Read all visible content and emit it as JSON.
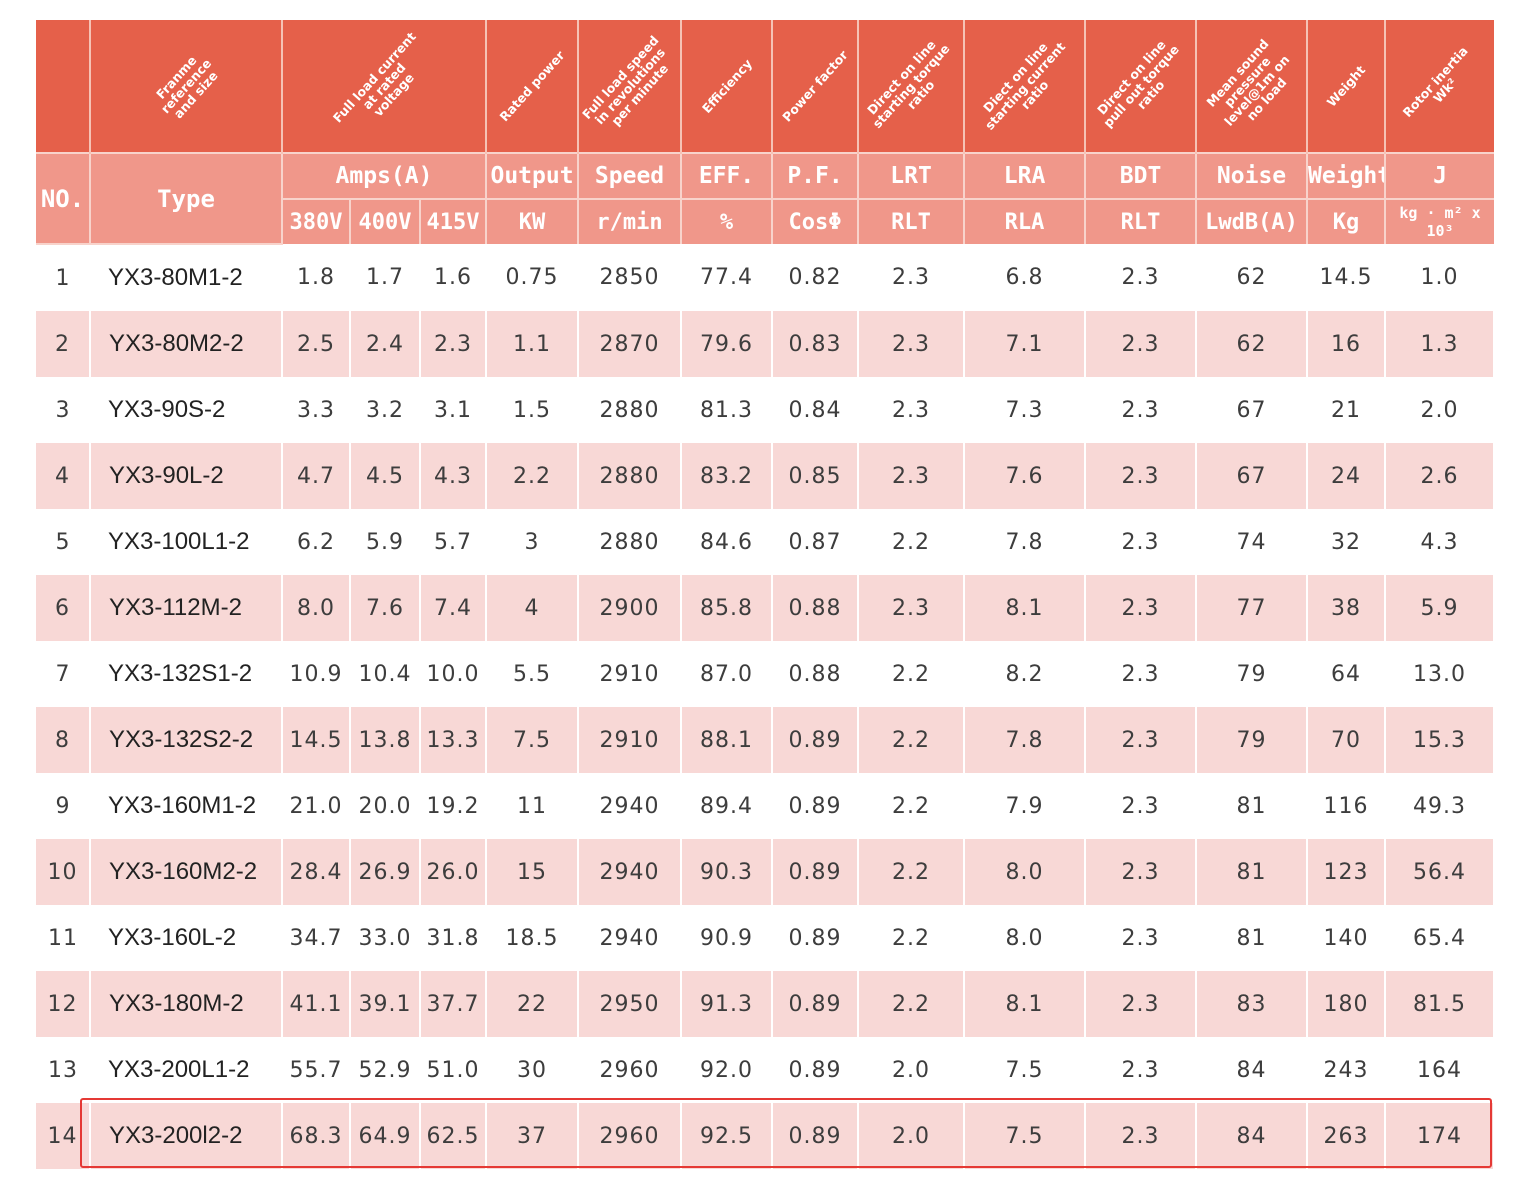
{
  "header_rotated": {
    "no": "",
    "type": "Franme\nreference\nand size",
    "amps": "Full load current\nat rated\nvoltage",
    "output": "Rated power",
    "speed": "Full load speed\nin revolutions\nper minute",
    "eff": "Efficiency",
    "pf": "Power factor",
    "lrt": "Direct on line\nstarting torque\nratio",
    "lra": "Diect on line\nstarting current\nratio",
    "bdt": "Direct on line\npull out torque\nratio",
    "noise": "Mean sound\npressure\nlevel@1m on\nno load",
    "weight": "Weight",
    "j": "Rotor inertia\nWk²"
  },
  "header_main": {
    "no": "NO.",
    "type": "Type",
    "amps": "Amps(A)",
    "output": "Output",
    "speed": "Speed",
    "eff": "EFF.",
    "pf": "P.F.",
    "lrt": "LRT",
    "lra": "LRA",
    "bdt": "BDT",
    "noise": "Noise",
    "weight": "Weight",
    "j": "J"
  },
  "header_units": {
    "v380": "380V",
    "v400": "400V",
    "v415": "415V",
    "output": "KW",
    "speed": "r/min",
    "eff": "%",
    "pf": "CosΦ",
    "lrt": "RLT",
    "lra": "RLA",
    "bdt": "RLT",
    "noise": "LwdB(A)",
    "weight": "Kg",
    "j": "kg · m² x 10³"
  },
  "rows": [
    [
      "1",
      "YX3-80M1-2",
      "1.8",
      "1.7",
      "1.6",
      "0.75",
      "2850",
      "77.4",
      "0.82",
      "2.3",
      "6.8",
      "2.3",
      "62",
      "14.5",
      "1.0"
    ],
    [
      "2",
      "YX3-80M2-2",
      "2.5",
      "2.4",
      "2.3",
      "1.1",
      "2870",
      "79.6",
      "0.83",
      "2.3",
      "7.1",
      "2.3",
      "62",
      "16",
      "1.3"
    ],
    [
      "3",
      "YX3-90S-2",
      "3.3",
      "3.2",
      "3.1",
      "1.5",
      "2880",
      "81.3",
      "0.84",
      "2.3",
      "7.3",
      "2.3",
      "67",
      "21",
      "2.0"
    ],
    [
      "4",
      "YX3-90L-2",
      "4.7",
      "4.5",
      "4.3",
      "2.2",
      "2880",
      "83.2",
      "0.85",
      "2.3",
      "7.6",
      "2.3",
      "67",
      "24",
      "2.6"
    ],
    [
      "5",
      "YX3-100L1-2",
      "6.2",
      "5.9",
      "5.7",
      "3",
      "2880",
      "84.6",
      "0.87",
      "2.2",
      "7.8",
      "2.3",
      "74",
      "32",
      "4.3"
    ],
    [
      "6",
      "YX3-112M-2",
      "8.0",
      "7.6",
      "7.4",
      "4",
      "2900",
      "85.8",
      "0.88",
      "2.3",
      "8.1",
      "2.3",
      "77",
      "38",
      "5.9"
    ],
    [
      "7",
      "YX3-132S1-2",
      "10.9",
      "10.4",
      "10.0",
      "5.5",
      "2910",
      "87.0",
      "0.88",
      "2.2",
      "8.2",
      "2.3",
      "79",
      "64",
      "13.0"
    ],
    [
      "8",
      "YX3-132S2-2",
      "14.5",
      "13.8",
      "13.3",
      "7.5",
      "2910",
      "88.1",
      "0.89",
      "2.2",
      "7.8",
      "2.3",
      "79",
      "70",
      "15.3"
    ],
    [
      "9",
      "YX3-160M1-2",
      "21.0",
      "20.0",
      "19.2",
      "11",
      "2940",
      "89.4",
      "0.89",
      "2.2",
      "7.9",
      "2.3",
      "81",
      "116",
      "49.3"
    ],
    [
      "10",
      "YX3-160M2-2",
      "28.4",
      "26.9",
      "26.0",
      "15",
      "2940",
      "90.3",
      "0.89",
      "2.2",
      "8.0",
      "2.3",
      "81",
      "123",
      "56.4"
    ],
    [
      "11",
      "YX3-160L-2",
      "34.7",
      "33.0",
      "31.8",
      "18.5",
      "2940",
      "90.9",
      "0.89",
      "2.2",
      "8.0",
      "2.3",
      "81",
      "140",
      "65.4"
    ],
    [
      "12",
      "YX3-180M-2",
      "41.1",
      "39.1",
      "37.7",
      "22",
      "2950",
      "91.3",
      "0.89",
      "2.2",
      "8.1",
      "2.3",
      "83",
      "180",
      "81.5"
    ],
    [
      "13",
      "YX3-200L1-2",
      "55.7",
      "52.9",
      "51.0",
      "30",
      "2960",
      "92.0",
      "0.89",
      "2.0",
      "7.5",
      "2.3",
      "84",
      "243",
      "164"
    ],
    [
      "14",
      "YX3-200l2-2",
      "68.3",
      "64.9",
      "62.5",
      "37",
      "2960",
      "92.5",
      "0.89",
      "2.0",
      "7.5",
      "2.3",
      "84",
      "263",
      "174"
    ]
  ],
  "highlighted_row": 14,
  "colors": {
    "header_dark": "#e5604a",
    "header_light": "#f0978a",
    "row_stripe": "#f8d8d6",
    "highlight_border": "#e53935"
  }
}
